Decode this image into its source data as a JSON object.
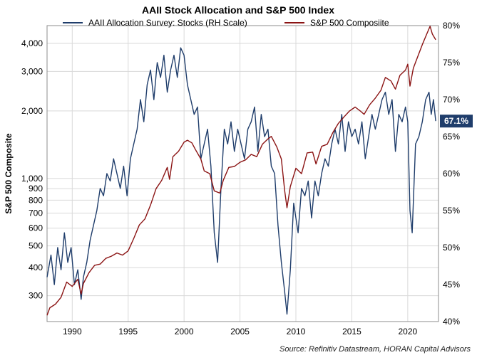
{
  "chart_data": {
    "type": "line",
    "title": "AAII Stock Allocation and S&P 500 Index",
    "ylabel_left": "S&P 500 Composite",
    "ylabel_right": "",
    "left_axis_scale": "log",
    "ylim_left": [
      230,
      4800
    ],
    "ylim_right": [
      40,
      80
    ],
    "xlim": [
      1987.75,
      2022.75
    ],
    "grid": true,
    "legend_placement": "top",
    "left_ticks": [
      {
        "v": 300,
        "label": "300"
      },
      {
        "v": 400,
        "label": "400"
      },
      {
        "v": 500,
        "label": "500"
      },
      {
        "v": 600,
        "label": "600"
      },
      {
        "v": 700,
        "label": "700"
      },
      {
        "v": 800,
        "label": "800"
      },
      {
        "v": 900,
        "label": "900"
      },
      {
        "v": 1000,
        "label": "1,000"
      },
      {
        "v": 2000,
        "label": "2,000"
      },
      {
        "v": 3000,
        "label": "3,000"
      },
      {
        "v": 4000,
        "label": "4,000"
      }
    ],
    "right_ticks": [
      {
        "v": 40,
        "label": "40%"
      },
      {
        "v": 45,
        "label": "45%"
      },
      {
        "v": 50,
        "label": "50%"
      },
      {
        "v": 55,
        "label": "55%"
      },
      {
        "v": 60,
        "label": "60%"
      },
      {
        "v": 65,
        "label": "65%"
      },
      {
        "v": 70,
        "label": "70%"
      },
      {
        "v": 75,
        "label": "75%"
      },
      {
        "v": 80,
        "label": "80%"
      }
    ],
    "x_ticks": [
      {
        "v": 1990,
        "label": "1990"
      },
      {
        "v": 1995,
        "label": "1995"
      },
      {
        "v": 2000,
        "label": "2000"
      },
      {
        "v": 2005,
        "label": "2005"
      },
      {
        "v": 2010,
        "label": "2010"
      },
      {
        "v": 2015,
        "label": "2015"
      },
      {
        "v": 2020,
        "label": "2020"
      }
    ],
    "series": [
      {
        "name": "AAII Allocation Survey: Stocks (RH Scale)",
        "color": "#1f3d6b",
        "axis": "right",
        "x": [
          1987.75,
          1988.1,
          1988.4,
          1988.7,
          1989.0,
          1989.3,
          1989.6,
          1989.9,
          1990.2,
          1990.5,
          1990.8,
          1991.0,
          1991.3,
          1991.6,
          1991.9,
          1992.2,
          1992.5,
          1992.8,
          1993.1,
          1993.4,
          1993.7,
          1994.0,
          1994.3,
          1994.6,
          1994.9,
          1995.2,
          1995.5,
          1995.8,
          1996.1,
          1996.4,
          1996.7,
          1997.0,
          1997.3,
          1997.6,
          1997.9,
          1998.2,
          1998.5,
          1998.8,
          1999.1,
          1999.4,
          1999.7,
          2000.0,
          2000.3,
          2000.6,
          2000.9,
          2001.2,
          2001.5,
          2001.8,
          2002.1,
          2002.4,
          2002.7,
          2003.0,
          2003.3,
          2003.6,
          2003.9,
          2004.2,
          2004.5,
          2004.8,
          2005.1,
          2005.4,
          2005.7,
          2006.0,
          2006.3,
          2006.6,
          2006.9,
          2007.2,
          2007.5,
          2007.8,
          2008.1,
          2008.4,
          2008.7,
          2009.0,
          2009.2,
          2009.5,
          2009.8,
          2010.2,
          2010.5,
          2010.8,
          2011.1,
          2011.4,
          2011.7,
          2012.0,
          2012.3,
          2012.6,
          2012.9,
          2013.2,
          2013.5,
          2013.8,
          2014.1,
          2014.4,
          2014.7,
          2015.0,
          2015.3,
          2015.6,
          2015.9,
          2016.2,
          2016.5,
          2016.8,
          2017.1,
          2017.4,
          2017.7,
          2018.0,
          2018.3,
          2018.6,
          2018.9,
          2019.2,
          2019.5,
          2019.8,
          2020.0,
          2020.2,
          2020.4,
          2020.7,
          2021.0,
          2021.3,
          2021.6,
          2021.9,
          2022.1,
          2022.3,
          2022.5
        ],
        "y": [
          46,
          49,
          45,
          50,
          47,
          52,
          48,
          50,
          45,
          47,
          43,
          46,
          48,
          51,
          53,
          55,
          58,
          57,
          60,
          59,
          62,
          60,
          58,
          61,
          57,
          62,
          64,
          66,
          70,
          67,
          72,
          74,
          70,
          75,
          73,
          76,
          71,
          74,
          76,
          73,
          77,
          76,
          72,
          70,
          68,
          69,
          62,
          64,
          66,
          61,
          52,
          48,
          58,
          66,
          64,
          67,
          63,
          66,
          64,
          62,
          66,
          67,
          69,
          63,
          68,
          65,
          66,
          61,
          60,
          53,
          48,
          44,
          41,
          47,
          56,
          52,
          58,
          57,
          59,
          54,
          59,
          57,
          60,
          62,
          61,
          64,
          66,
          64,
          68,
          63,
          67,
          65,
          66,
          64,
          67,
          62,
          65,
          68,
          66,
          68,
          70,
          71,
          68,
          70,
          63,
          68,
          67,
          69,
          67,
          55,
          52,
          64,
          65,
          67,
          70,
          71,
          68,
          70,
          67.1
        ]
      },
      {
        "name": "S&P 500 Composiite",
        "color": "#8b1414",
        "axis": "left",
        "x": [
          1987.75,
          1988.0,
          1988.5,
          1989.0,
          1989.5,
          1990.0,
          1990.5,
          1990.8,
          1991.0,
          1991.5,
          1992.0,
          1992.5,
          1993.0,
          1993.5,
          1994.0,
          1994.5,
          1995.0,
          1995.5,
          1996.0,
          1996.5,
          1997.0,
          1997.5,
          1998.0,
          1998.5,
          1998.7,
          1999.0,
          1999.5,
          2000.0,
          2000.3,
          2000.7,
          2001.0,
          2001.5,
          2001.8,
          2002.3,
          2002.7,
          2003.2,
          2003.5,
          2004.0,
          2004.5,
          2005.0,
          2005.5,
          2006.0,
          2006.5,
          2007.0,
          2007.5,
          2007.8,
          2008.3,
          2008.7,
          2009.0,
          2009.2,
          2009.5,
          2010.0,
          2010.5,
          2011.0,
          2011.5,
          2011.8,
          2012.3,
          2012.8,
          2013.3,
          2013.8,
          2014.3,
          2014.8,
          2015.3,
          2015.8,
          2016.1,
          2016.6,
          2017.1,
          2017.6,
          2018.0,
          2018.5,
          2018.9,
          2019.3,
          2019.8,
          2020.0,
          2020.2,
          2020.5,
          2020.9,
          2021.3,
          2021.7,
          2022.0,
          2022.2,
          2022.5
        ],
        "y": [
          245,
          265,
          275,
          295,
          345,
          330,
          355,
          305,
          340,
          380,
          410,
          415,
          440,
          450,
          465,
          455,
          475,
          540,
          620,
          660,
          760,
          900,
          980,
          1120,
          990,
          1250,
          1320,
          1450,
          1480,
          1440,
          1350,
          1220,
          1080,
          1050,
          880,
          860,
          980,
          1120,
          1130,
          1180,
          1210,
          1280,
          1250,
          1420,
          1500,
          1540,
          1380,
          1220,
          880,
          740,
          920,
          1110,
          1050,
          1300,
          1310,
          1160,
          1390,
          1420,
          1600,
          1760,
          1880,
          2000,
          2080,
          1990,
          1930,
          2130,
          2280,
          2470,
          2820,
          2720,
          2500,
          2880,
          3040,
          3230,
          2580,
          3100,
          3500,
          3950,
          4400,
          4770,
          4400,
          4150
        ]
      }
    ],
    "annotation": {
      "text": "67.1%",
      "value": 67.1,
      "color": "#1f3d6b"
    }
  },
  "source": "Source: Refinitiv Datastream, HORAN Capital Advisors"
}
